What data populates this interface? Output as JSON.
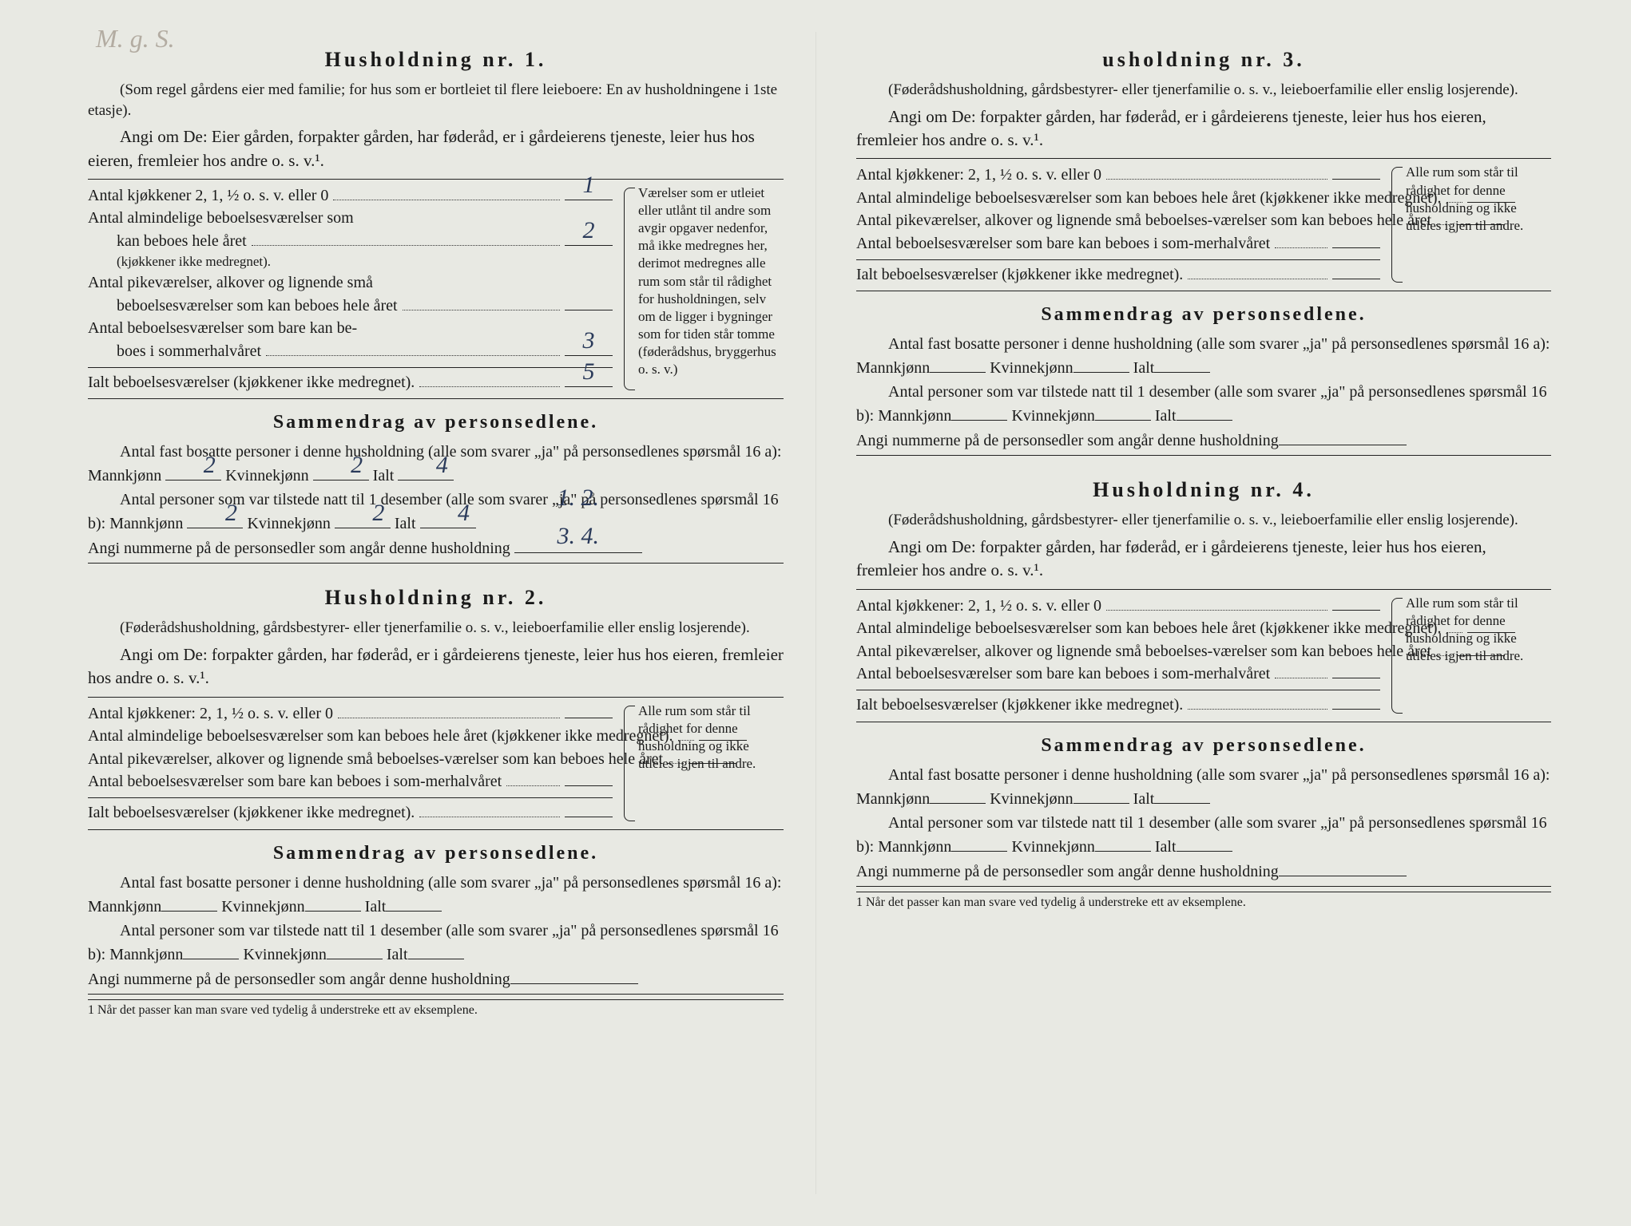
{
  "handwrittenTop": "M. g. S.",
  "footnote": "1  Når det passer kan man svare ved tydelig å understreke ett av eksemplene.",
  "common": {
    "sammendragTitle": "Sammendrag av personsedlene.",
    "fastBosatte": "Antal fast bosatte personer i denne husholdning (alle som svarer „ja\" på personsedlenes spørsmål 16 a): Mannkjønn",
    "kvinne": "Kvinnekjønn",
    "ialt": "Ialt",
    "tilstede": "Antal personer som var tilstede natt til 1 desember (alle som svarer „ja\" på personsedlenes spørsmål 16 b): Mannkjønn",
    "angiNum": "Angi nummerne på de personsedler som angår denne husholdning",
    "ialtBeboelse": "Ialt beboelsesværelser (kjøkkener ikke medregnet).",
    "kjokken": "Antal kjøkkener: 2, 1, ½ o. s. v. eller 0",
    "kjokkenH1": "Antal kjøkkener 2, 1, ½ o. s. v. eller 0",
    "almindelige": "Antal almindelige beboelsesværelser som kan beboes hele året (kjøkkener ikke medregnet).",
    "almindeligeH1a": "Antal almindelige beboelsesværelser som",
    "almindeligeH1b": "kan beboes hele året",
    "almindeligeH1c": "(kjøkkener ikke medregnet).",
    "pike": "Antal pikeværelser, alkover og lignende små beboelses-værelser som kan beboes hele året",
    "pikeH1a": "Antal pikeværelser, alkover og lignende små",
    "pikeH1b": "beboelsesværelser som kan beboes hele året",
    "sommer": "Antal beboelsesværelser som bare kan beboes i som-merhalvåret",
    "sommerH1a": "Antal beboelsesværelser som bare kan be-",
    "sommerH1b": "boes i sommerhalvåret",
    "sideNoteLong": "Værelser som er utleiet eller utlånt til andre som avgir opgaver nedenfor, må ikke medregnes her, derimot medregnes alle rum som står til rådighet for husholdningen, selv om de ligger i bygninger som for tiden står tomme (føderådshus, bryggerhus o. s. v.)",
    "sideNoteShort": "Alle rum som står til rådighet for denne husholdning og ikke utleies igjen til andre."
  },
  "h1": {
    "title": "Husholdning nr. 1.",
    "intro": "(Som regel gårdens eier med familie; for hus som er bortleiet til flere leieboere: En av husholdningene i 1ste etasje).",
    "angi": "Angi om De: Eier gården, forpakter gården, har føderåd, er i gårdeierens tjeneste, leier hus hos eieren, fremleier hos andre o. s. v.¹.",
    "vals": {
      "kjokken": "1",
      "alm": "2",
      "pike": "",
      "sommer": "3",
      "ialtB": "5",
      "mann16a": "2",
      "kvinne16a": "2",
      "ialt16a": "4",
      "mann16b": "2",
      "kvinne16b": "2",
      "ialt16b": "4",
      "numre": "1. 2. 3. 4."
    }
  },
  "h2": {
    "title": "Husholdning nr. 2.",
    "intro": "(Føderådshusholdning, gårdsbestyrer- eller tjenerfamilie o. s. v., leieboerfamilie eller enslig losjerende).",
    "angi": "Angi om De:  forpakter gården, har føderåd, er i gårdeierens tjeneste, leier hus hos eieren, fremleier hos andre o. s. v.¹."
  },
  "h3": {
    "title": "usholdning nr. 3.",
    "intro": "(Føderådshusholdning, gårdsbestyrer- eller tjenerfamilie o. s. v., leieboerfamilie eller enslig losjerende).",
    "angi": "Angi om De:  forpakter gården, har føderåd, er i gårdeierens tjeneste, leier hus hos eieren, fremleier hos andre o. s. v.¹."
  },
  "h4": {
    "title": "Husholdning nr. 4.",
    "intro": "(Føderådshusholdning, gårdsbestyrer- eller tjenerfamilie o. s. v., leieboerfamilie eller enslig losjerende).",
    "angi": "Angi om De:  forpakter gården, har føderåd, er i gårdeierens tjeneste, leier hus hos eieren, fremleier hos andre o. s. v.¹."
  }
}
